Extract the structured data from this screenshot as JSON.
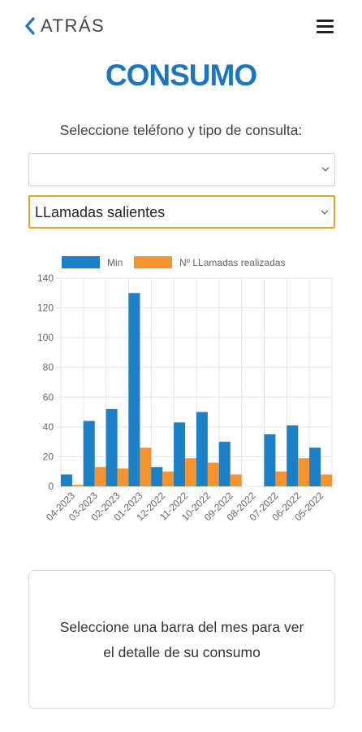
{
  "header": {
    "back_label": "ATRÁS",
    "back_icon": "chevron-left-icon",
    "menu_icon": "hamburger-menu-icon"
  },
  "page_title": "CONSUMO",
  "prompt": "Seleccione teléfono y tipo de consulta:",
  "phone_select": {
    "value": ""
  },
  "type_select": {
    "value": "LLamadas salientes"
  },
  "colors": {
    "accent": "#1976bf",
    "series_min": "#1b80c6",
    "series_calls": "#f5932e",
    "select_focus": "#e0a526"
  },
  "chart_data": {
    "type": "bar",
    "categories": [
      "04-2023",
      "03-2023",
      "02-2023",
      "01-2023",
      "12-2022",
      "11-2022",
      "10-2022",
      "09-2022",
      "08-2022",
      "07-2022",
      "06-2022",
      "05-2022"
    ],
    "series": [
      {
        "name": "Min",
        "values": [
          8,
          44,
          52,
          130,
          13,
          43,
          50,
          30,
          0,
          35,
          41,
          26
        ]
      },
      {
        "name": "Nº LLamadas realizadas",
        "values": [
          1,
          13,
          12,
          26,
          10,
          19,
          16,
          8,
          0,
          10,
          19,
          8
        ]
      }
    ],
    "yticks": [
      "0",
      "20",
      "40",
      "60",
      "80",
      "100",
      "120",
      "140"
    ],
    "ylim": [
      0,
      140
    ],
    "grid": true,
    "legend": "top"
  },
  "info_box": {
    "line1": "Seleccione una barra del mes para ver",
    "line2": "el detalle de su consumo"
  }
}
